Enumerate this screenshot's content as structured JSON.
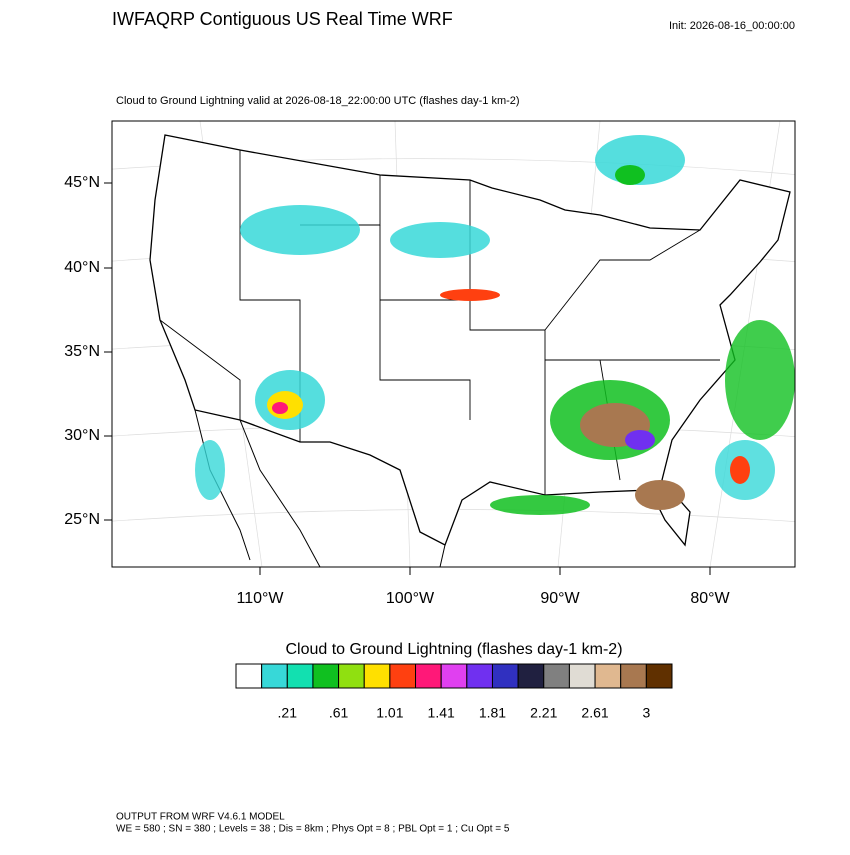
{
  "title": "IWFAQRP Contiguous US Real Time WRF",
  "init": "Init: 2026-08-16_00:00:00",
  "subtitle": "Cloud to Ground Lightning valid at 2026-08-18_22:00:00 UTC   (flashes day-1 km-2)",
  "map": {
    "lat_labels": [
      "45°N",
      "40°N",
      "35°N",
      "30°N",
      "25°N"
    ],
    "lon_labels": [
      "110°W",
      "100°W",
      "90°W",
      "80°W"
    ]
  },
  "colorbar": {
    "title": "Cloud to Ground Lightning  (flashes day-1 km-2)",
    "colors": [
      "#ffffff",
      "#37d8d8",
      "#12e0b0",
      "#10c020",
      "#90e010",
      "#ffe000",
      "#ff4010",
      "#ff1878",
      "#e040f0",
      "#7030f0",
      "#3030c0",
      "#202040",
      "#808080",
      "#e0dcd4",
      "#e0b890",
      "#a87850",
      "#603000"
    ],
    "labels": [
      ".21",
      ".61",
      "1.01",
      "1.41",
      "1.81",
      "2.21",
      "2.61",
      "3"
    ]
  },
  "footer": [
    "OUTPUT FROM WRF V4.6.1 MODEL",
    "WE = 580 ; SN = 380 ; Levels = 38 ; Dis = 8km ; Phys Opt = 8 ; PBL Opt = 1 ; Cu Opt = 5"
  ]
}
